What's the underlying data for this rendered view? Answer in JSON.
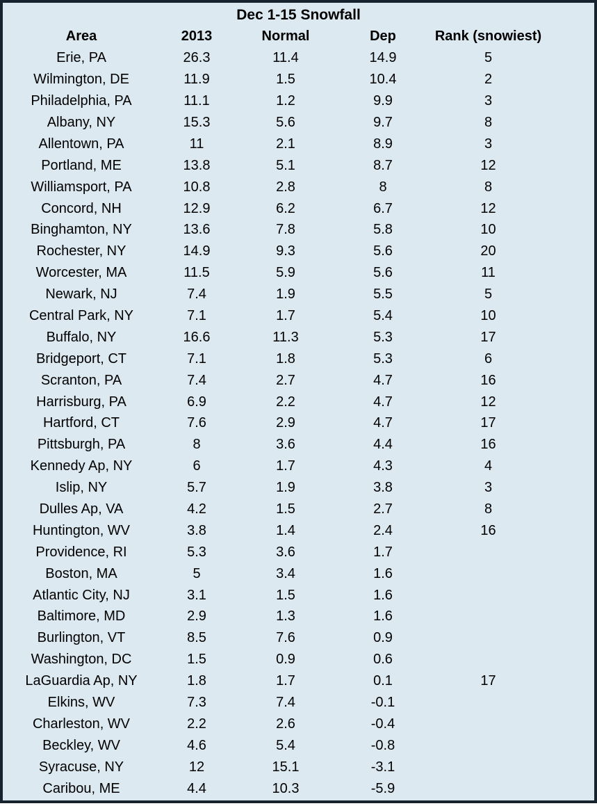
{
  "chart_data": {
    "type": "table",
    "title": "Dec 1-15 Snowfall",
    "columns": [
      "Area",
      "2013",
      "Normal",
      "Dep",
      "Rank (snowiest)"
    ],
    "rows": [
      [
        "Erie, PA",
        "26.3",
        "11.4",
        "14.9",
        "5"
      ],
      [
        "Wilmington, DE",
        "11.9",
        "1.5",
        "10.4",
        "2"
      ],
      [
        "Philadelphia, PA",
        "11.1",
        "1.2",
        "9.9",
        "3"
      ],
      [
        "Albany, NY",
        "15.3",
        "5.6",
        "9.7",
        "8"
      ],
      [
        "Allentown, PA",
        "11",
        "2.1",
        "8.9",
        "3"
      ],
      [
        "Portland, ME",
        "13.8",
        "5.1",
        "8.7",
        "12"
      ],
      [
        "Williamsport, PA",
        "10.8",
        "2.8",
        "8",
        "8"
      ],
      [
        "Concord, NH",
        "12.9",
        "6.2",
        "6.7",
        "12"
      ],
      [
        "Binghamton, NY",
        "13.6",
        "7.8",
        "5.8",
        "10"
      ],
      [
        "Rochester, NY",
        "14.9",
        "9.3",
        "5.6",
        "20"
      ],
      [
        "Worcester, MA",
        "11.5",
        "5.9",
        "5.6",
        "11"
      ],
      [
        "Newark, NJ",
        "7.4",
        "1.9",
        "5.5",
        "5"
      ],
      [
        "Central Park, NY",
        "7.1",
        "1.7",
        "5.4",
        "10"
      ],
      [
        "Buffalo, NY",
        "16.6",
        "11.3",
        "5.3",
        "17"
      ],
      [
        "Bridgeport, CT",
        "7.1",
        "1.8",
        "5.3",
        "6"
      ],
      [
        "Scranton, PA",
        "7.4",
        "2.7",
        "4.7",
        "16"
      ],
      [
        "Harrisburg, PA",
        "6.9",
        "2.2",
        "4.7",
        "12"
      ],
      [
        "Hartford, CT",
        "7.6",
        "2.9",
        "4.7",
        "17"
      ],
      [
        "Pittsburgh, PA",
        "8",
        "3.6",
        "4.4",
        "16"
      ],
      [
        "Kennedy Ap, NY",
        "6",
        "1.7",
        "4.3",
        "4"
      ],
      [
        "Islip, NY",
        "5.7",
        "1.9",
        "3.8",
        "3"
      ],
      [
        "Dulles Ap, VA",
        "4.2",
        "1.5",
        "2.7",
        "8"
      ],
      [
        "Huntington, WV",
        "3.8",
        "1.4",
        "2.4",
        "16"
      ],
      [
        "Providence, RI",
        "5.3",
        "3.6",
        "1.7",
        ""
      ],
      [
        "Boston, MA",
        "5",
        "3.4",
        "1.6",
        ""
      ],
      [
        "Atlantic City, NJ",
        "3.1",
        "1.5",
        "1.6",
        ""
      ],
      [
        "Baltimore, MD",
        "2.9",
        "1.3",
        "1.6",
        ""
      ],
      [
        "Burlington, VT",
        "8.5",
        "7.6",
        "0.9",
        ""
      ],
      [
        "Washington, DC",
        "1.5",
        "0.9",
        "0.6",
        ""
      ],
      [
        "LaGuardia Ap, NY",
        "1.8",
        "1.7",
        "0.1",
        "17"
      ],
      [
        "Elkins, WV",
        "7.3",
        "7.4",
        "-0.1",
        ""
      ],
      [
        "Charleston, WV",
        "2.2",
        "2.6",
        "-0.4",
        ""
      ],
      [
        "Beckley, WV",
        "4.6",
        "5.4",
        "-0.8",
        ""
      ],
      [
        "Syracuse, NY",
        "12",
        "15.1",
        "-3.1",
        ""
      ],
      [
        "Caribou, ME",
        "4.4",
        "10.3",
        "-5.9",
        ""
      ]
    ]
  },
  "colors": {
    "background": "#dce9f1",
    "border": "#17242f",
    "text": "#000000"
  }
}
